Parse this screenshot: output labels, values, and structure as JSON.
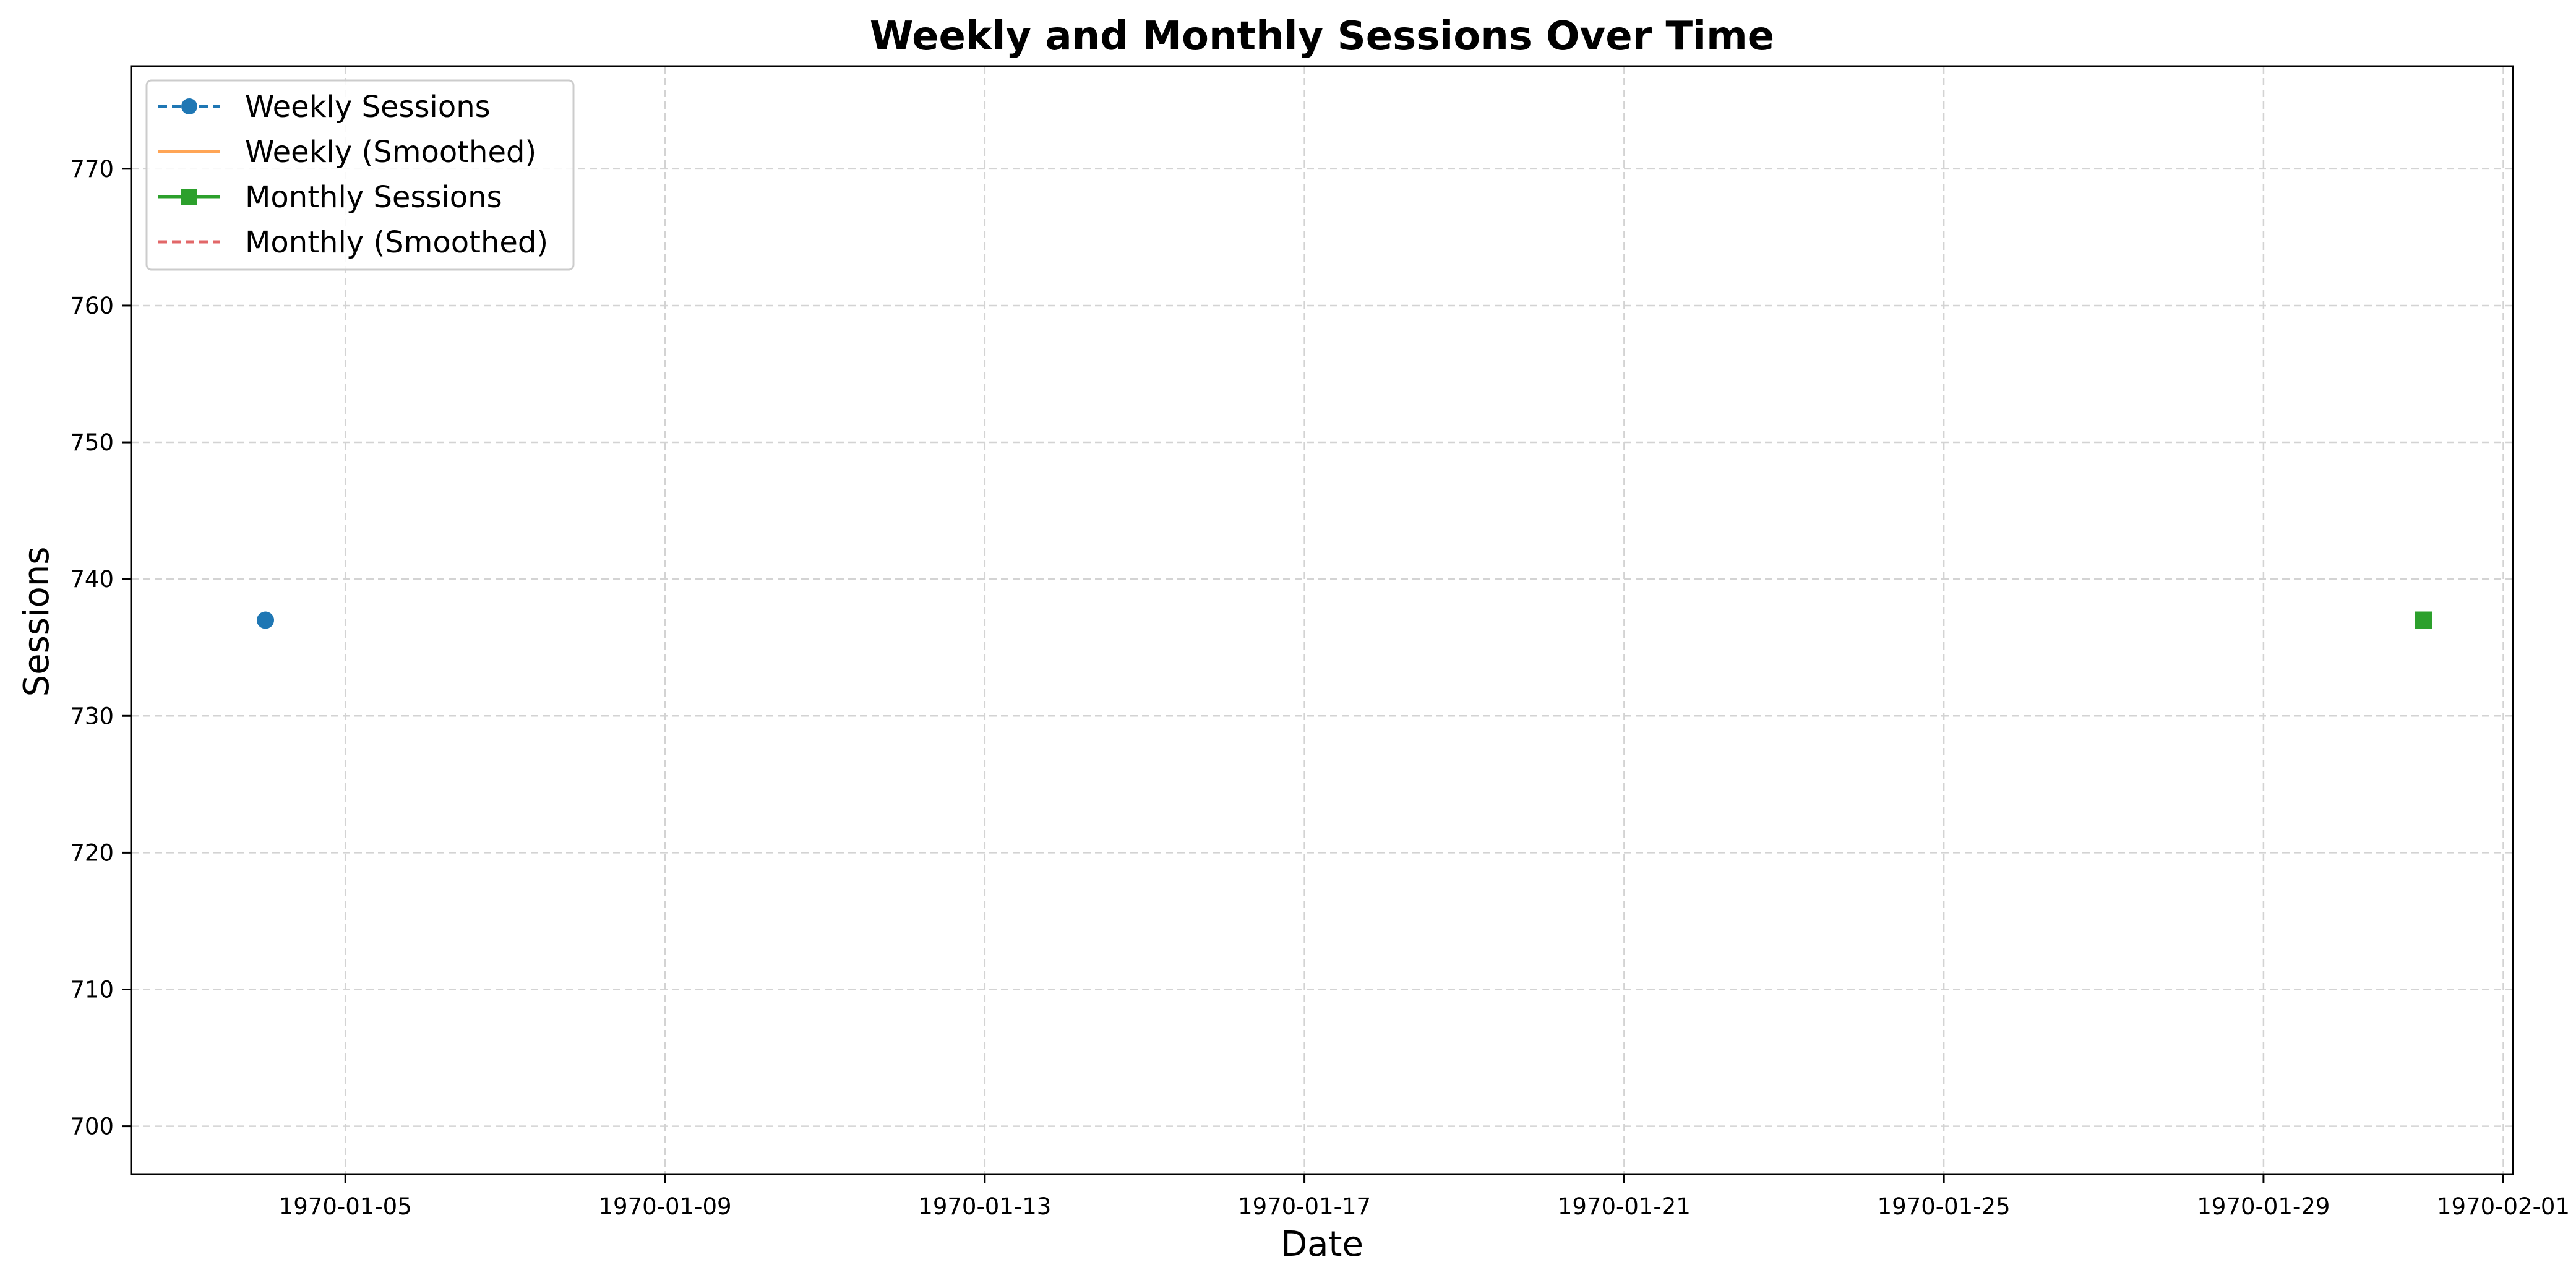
{
  "chart_data": {
    "type": "line",
    "title": "Weekly and Monthly Sessions Over Time",
    "xlabel": "Date",
    "ylabel": "Sessions",
    "x_type": "date",
    "xlim": [
      "1970-01-02",
      "1970-02-01"
    ],
    "ylim": [
      696.5,
      777.5
    ],
    "x_ticks": [
      "1970-01-05",
      "1970-01-09",
      "1970-01-13",
      "1970-01-17",
      "1970-01-21",
      "1970-01-25",
      "1970-01-29",
      "1970-02-01"
    ],
    "y_ticks": [
      700,
      710,
      720,
      730,
      740,
      750,
      760,
      770
    ],
    "grid": true,
    "legend_position": "top-left",
    "series": [
      {
        "name": "Weekly Sessions",
        "color": "#1f77b4",
        "line_style": "dashed",
        "marker": "circle",
        "x": [
          "1970-01-04"
        ],
        "y": [
          737
        ]
      },
      {
        "name": "Weekly (Smoothed)",
        "color": "#ff7f0e",
        "line_style": "solid",
        "marker": "none",
        "x": [],
        "y": []
      },
      {
        "name": "Monthly Sessions",
        "color": "#2ca02c",
        "line_style": "solid",
        "marker": "square",
        "x": [
          "1970-01-31"
        ],
        "y": [
          737
        ]
      },
      {
        "name": "Monthly (Smoothed)",
        "color": "#d62728",
        "line_style": "dashed",
        "marker": "none",
        "x": [],
        "y": []
      }
    ]
  }
}
